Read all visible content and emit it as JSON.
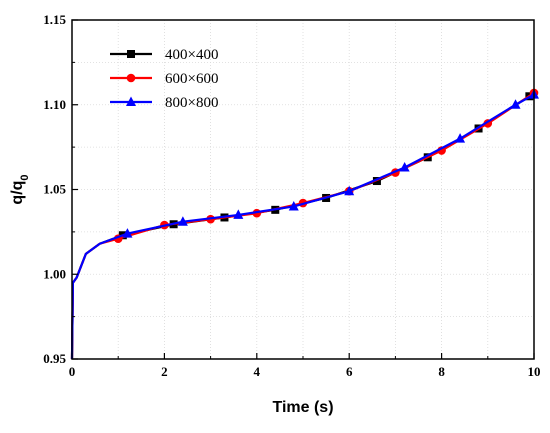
{
  "chart_data": {
    "type": "line",
    "title": "",
    "xlabel": "Time (s)",
    "ylabel_main": "q/q",
    "ylabel_sub": "0",
    "xlim": [
      0,
      10
    ],
    "ylim": [
      0.95,
      1.15
    ],
    "xticks": [
      0,
      2,
      4,
      6,
      8,
      10
    ],
    "yticks": [
      0.95,
      1.0,
      1.05,
      1.1,
      1.15
    ],
    "ytick_labels": [
      "0.95",
      "1.00",
      "1.05",
      "1.10",
      "1.15"
    ],
    "grid": true,
    "legend_position": "top-left",
    "series": [
      {
        "name": "400×400",
        "color": "#000000",
        "marker": "square",
        "x": [
          0,
          0.02,
          0.1,
          0.3,
          0.6,
          1.1,
          2.2,
          3.3,
          4.4,
          5.5,
          6.6,
          7.7,
          8.8,
          9.9
        ],
        "y": [
          0.95,
          0.995,
          0.998,
          1.012,
          1.018,
          1.023,
          1.0295,
          1.0335,
          1.038,
          1.045,
          1.055,
          1.069,
          1.086,
          1.105
        ]
      },
      {
        "name": "600×600",
        "color": "#ff0000",
        "marker": "circle",
        "x": [
          0,
          0.02,
          0.1,
          0.3,
          0.6,
          1.0,
          2.0,
          3.0,
          4.0,
          5.0,
          6.0,
          7.0,
          8.0,
          9.0,
          10.0
        ],
        "y": [
          0.95,
          0.995,
          0.998,
          1.012,
          1.018,
          1.021,
          1.029,
          1.0325,
          1.036,
          1.042,
          1.049,
          1.06,
          1.073,
          1.089,
          1.107
        ]
      },
      {
        "name": "800×800",
        "color": "#0000ff",
        "marker": "triangle",
        "x": [
          0,
          0.02,
          0.1,
          0.3,
          0.6,
          1.2,
          2.4,
          3.6,
          4.8,
          6.0,
          7.2,
          8.4,
          9.6,
          10.0
        ],
        "y": [
          0.95,
          0.995,
          0.998,
          1.012,
          1.018,
          1.024,
          1.031,
          1.035,
          1.04,
          1.049,
          1.063,
          1.08,
          1.1,
          1.106
        ]
      }
    ]
  }
}
